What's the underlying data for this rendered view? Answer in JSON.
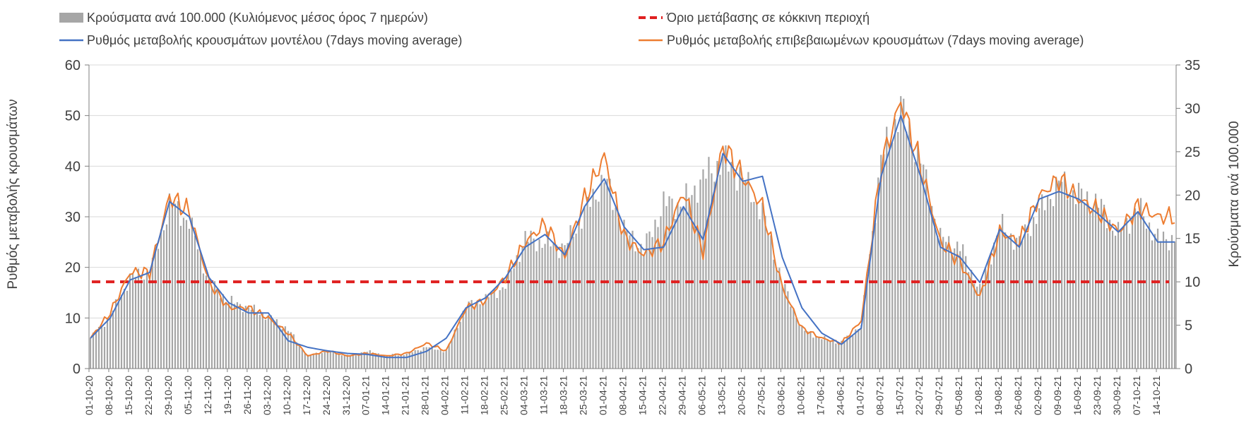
{
  "chart_data": {
    "type": "bar",
    "title": "",
    "legend": {
      "placement": "top",
      "items": [
        {
          "key": "bars",
          "label": "Κρούσματα ανά 100.000 (Κυλιόμενος μέσος όρος 7 ημερών)",
          "color": "#a6a6a6",
          "kind": "bar"
        },
        {
          "key": "threshold",
          "label": "Όριο μετάβασης σε κόκκινη περιοχή",
          "color": "#e02020",
          "kind": "dashed"
        },
        {
          "key": "model",
          "label": "Ρυθμός μεταβολής κρουσμάτων μοντέλου (7days moving average)",
          "color": "#4472c4",
          "kind": "line"
        },
        {
          "key": "confirmed",
          "label": "Ρυθμός μεταβολής επιβεβαιωμένων κρουσμάτων (7days moving average)",
          "color": "#ed7d31",
          "kind": "line"
        }
      ]
    },
    "y_left": {
      "label": "Ρυθμός μεταβολής κρουσμάτων",
      "min": 0,
      "max": 60,
      "ticks": [
        "0",
        "10",
        "20",
        "30",
        "40",
        "50",
        "60"
      ]
    },
    "y_right": {
      "label": "Κρούσματα ανά 100.000",
      "min": 0,
      "max": 35,
      "ticks": [
        "0",
        "5",
        "10",
        "15",
        "20",
        "25",
        "30",
        "35"
      ]
    },
    "grid": true,
    "x": {
      "start": "01-10-20",
      "days": 385,
      "tick_step_days": 7,
      "tick_labels": [
        "01-10-20",
        "08-10-20",
        "15-10-20",
        "22-10-20",
        "29-10-20",
        "05-11-20",
        "12-11-20",
        "19-11-20",
        "26-11-20",
        "03-12-20",
        "10-12-20",
        "17-12-20",
        "24-12-20",
        "31-12-20",
        "07-01-21",
        "14-01-21",
        "21-01-21",
        "28-01-21",
        "04-02-21",
        "11-02-21",
        "18-02-21",
        "25-02-21",
        "04-03-21",
        "11-03-21",
        "18-03-21",
        "25-03-21",
        "01-04-21",
        "08-04-21",
        "15-04-21",
        "22-04-21",
        "29-04-21",
        "06-05-21",
        "13-05-21",
        "20-05-21",
        "27-05-21",
        "03-06-21",
        "10-06-21",
        "17-06-21",
        "24-06-21",
        "01-07-21",
        "08-07-21",
        "15-07-21",
        "22-07-21",
        "29-07-21",
        "05-08-21",
        "12-08-21",
        "19-08-21",
        "26-08-21",
        "02-09-21",
        "09-09-21",
        "16-09-21",
        "23-09-21",
        "30-09-21",
        "07-10-21",
        "14-10-21"
      ]
    },
    "threshold_value": 10,
    "series": [
      {
        "name": "Κρούσματα ανά 100.000 (Κυλιόμενος μέσος όρος 7 ημερών)",
        "axis": "right",
        "kind": "bar",
        "days": [
          0,
          7,
          14,
          21,
          28,
          35,
          42,
          49,
          56,
          63,
          70,
          77,
          84,
          91,
          98,
          105,
          112,
          119,
          126,
          133,
          140,
          147,
          154,
          161,
          168,
          175,
          182,
          189,
          196,
          203,
          210,
          217,
          224,
          231,
          238,
          245,
          252,
          259,
          266,
          273,
          280,
          287,
          294,
          301,
          308,
          315,
          322,
          329,
          336,
          343,
          350,
          357,
          364,
          371,
          378,
          384
        ],
        "values": [
          3.5,
          6.0,
          10.5,
          11.0,
          19.0,
          17.0,
          10.0,
          7.8,
          7.0,
          6.0,
          4.5,
          1.5,
          2.0,
          1.5,
          2.0,
          1.5,
          1.7,
          2.5,
          2.0,
          7.2,
          8.0,
          9.6,
          15.0,
          14.5,
          14.0,
          18.0,
          22.0,
          16.0,
          13.7,
          19.0,
          19.0,
          22.0,
          24.0,
          22.0,
          18.0,
          10.0,
          4.5,
          3.5,
          3.0,
          5.0,
          24.0,
          30.0,
          24.0,
          15.0,
          14.0,
          9.0,
          16.5,
          14.5,
          18.0,
          21.5,
          20.0,
          19.0,
          15.5,
          18.5,
          15.0,
          15.0
        ]
      },
      {
        "name": "Ρυθμός μεταβολής κρουσμάτων μοντέλου (7days moving average)",
        "axis": "left",
        "kind": "line",
        "days": [
          0,
          7,
          14,
          21,
          28,
          35,
          42,
          49,
          56,
          63,
          70,
          77,
          84,
          91,
          98,
          105,
          112,
          119,
          126,
          133,
          140,
          147,
          154,
          161,
          168,
          175,
          182,
          189,
          196,
          203,
          210,
          217,
          224,
          231,
          238,
          245,
          252,
          259,
          266,
          273,
          280,
          287,
          294,
          301,
          308,
          315,
          322,
          329,
          336,
          343,
          350,
          357,
          364,
          371,
          378,
          384
        ],
        "values": [
          6.0,
          10.0,
          17.5,
          19.0,
          33.0,
          30.0,
          18.0,
          13.0,
          11.0,
          11.0,
          5.5,
          4.2,
          3.5,
          3.0,
          2.8,
          2.2,
          2.2,
          3.4,
          6.0,
          12.0,
          14.0,
          18.0,
          24.0,
          26.5,
          22.5,
          32.0,
          37.5,
          28.0,
          23.5,
          24.0,
          32.0,
          25.5,
          42.5,
          37.0,
          38.0,
          22.0,
          12.0,
          7.0,
          4.8,
          8.0,
          38.0,
          50.0,
          38.0,
          24.0,
          22.0,
          17.0,
          27.5,
          24.0,
          33.5,
          35.0,
          33.5,
          30.5,
          27.0,
          31.0,
          25.0,
          25.0
        ]
      },
      {
        "name": "Ρυθμός μεταβολής επιβεβαιωμένων κρουσμάτων (7days moving average)",
        "axis": "left",
        "kind": "line",
        "days": [
          0,
          7,
          14,
          21,
          28,
          35,
          42,
          49,
          56,
          63,
          70,
          77,
          84,
          91,
          98,
          105,
          112,
          119,
          126,
          133,
          140,
          147,
          154,
          161,
          168,
          175,
          182,
          189,
          196,
          203,
          210,
          217,
          224,
          231,
          238,
          245,
          252,
          259,
          266,
          273,
          280,
          287,
          294,
          301,
          308,
          315,
          322,
          329,
          336,
          343,
          350,
          357,
          364,
          371,
          378,
          384
        ],
        "values": [
          6.0,
          11.0,
          19.0,
          19.0,
          34.0,
          31.0,
          17.0,
          12.0,
          12.0,
          10.0,
          7.0,
          2.5,
          3.5,
          2.5,
          3.0,
          2.5,
          3.0,
          5.0,
          3.5,
          12.0,
          13.5,
          18.0,
          25.0,
          28.5,
          22.0,
          33.5,
          42.0,
          26.0,
          22.5,
          25.0,
          35.0,
          23.0,
          44.0,
          38.0,
          32.0,
          16.0,
          8.0,
          6.0,
          5.0,
          9.5,
          40.0,
          53.0,
          40.0,
          25.0,
          21.0,
          14.0,
          27.0,
          25.0,
          34.0,
          37.5,
          33.5,
          31.0,
          27.0,
          32.0,
          30.0,
          30.0
        ]
      }
    ]
  }
}
